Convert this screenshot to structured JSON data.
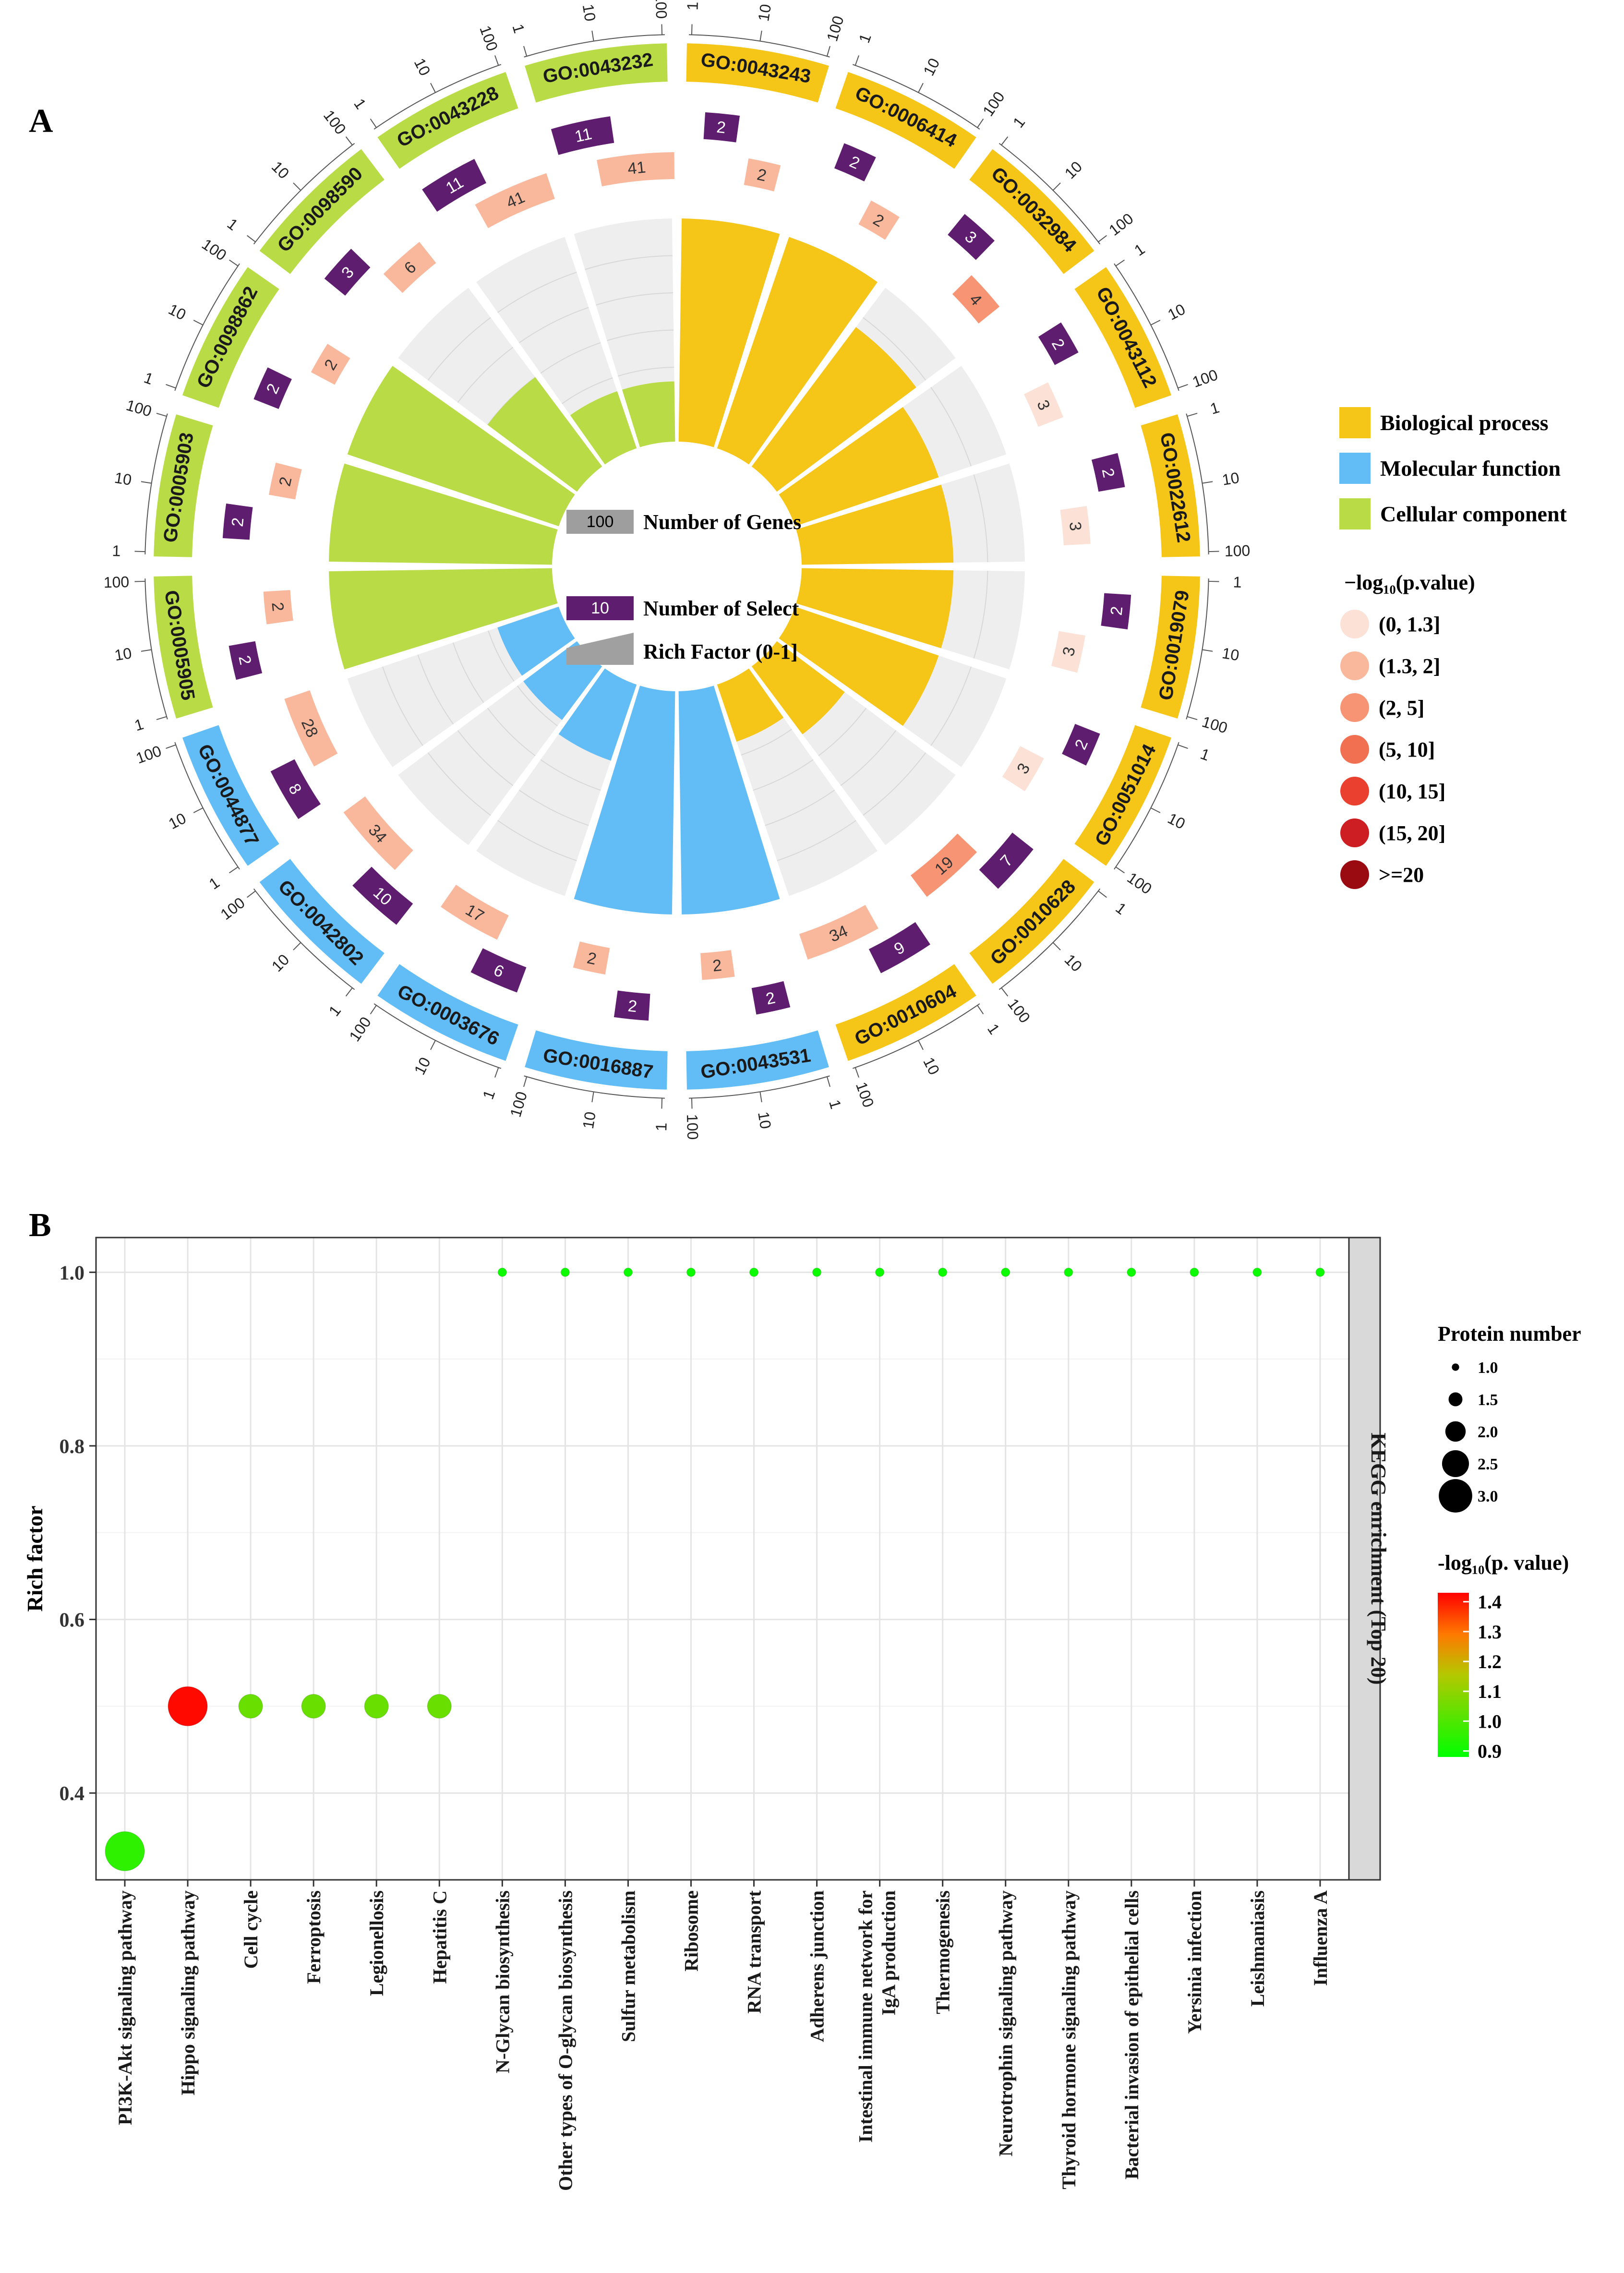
{
  "panel_a": {
    "letter": "A",
    "sector_ticks": [
      "1",
      "10",
      "100"
    ],
    "legend_categories": [
      {
        "label": "Biological process",
        "color": "#F5C518"
      },
      {
        "label": "Molecular function",
        "color": "#62BDF6"
      },
      {
        "label": "Cellular component",
        "color": "#B9DB45"
      }
    ],
    "pvalue_legend": {
      "title": "−log₁₀(p.value)",
      "items": [
        {
          "label": "(0, 1.3]",
          "color": "#FCE1D6"
        },
        {
          "label": "(1.3, 2]",
          "color": "#F9B79C"
        },
        {
          "label": "(2, 5]",
          "color": "#F69474"
        },
        {
          "label": "(5, 10]",
          "color": "#F27052"
        },
        {
          "label": "(10, 15]",
          "color": "#E9402F"
        },
        {
          "label": "(15, 20]",
          "color": "#CC1E23"
        },
        {
          "label": ">=20",
          "color": "#990A11"
        }
      ]
    },
    "center_legend": {
      "genes_label": "Number of Genes",
      "genes_value": "100",
      "select_label": "Number of Select",
      "select_value": "10",
      "rich_label": "Rich Factor (0-1]"
    }
  },
  "chart_data": [
    {
      "type": "circular-bar",
      "title": "GO enrichment",
      "categories": [
        "GO:0043243",
        "GO:0006414",
        "GO:0032984",
        "GO:0043112",
        "GO:0022612",
        "GO:0019079",
        "GO:0051014",
        "GO:0010628",
        "GO:0010604",
        "GO:0043531",
        "GO:0016887",
        "GO:0003676",
        "GO:0042802",
        "GO:0044877",
        "GO:0005905",
        "GO:0005903",
        "GO:0098862",
        "GO:0098590",
        "GO:0043228",
        "GO:0043232"
      ],
      "ontology": [
        "BP",
        "BP",
        "BP",
        "BP",
        "BP",
        "BP",
        "BP",
        "BP",
        "BP",
        "MF",
        "MF",
        "MF",
        "MF",
        "MF",
        "CC",
        "CC",
        "CC",
        "CC",
        "CC",
        "CC"
      ],
      "number_of_genes": [
        2,
        2,
        4,
        3,
        3,
        3,
        3,
        19,
        34,
        2,
        2,
        17,
        34,
        28,
        2,
        2,
        2,
        6,
        41,
        41
      ],
      "gene_color_class": [
        "(1.3, 2]",
        "(1.3, 2]",
        "(2, 5]",
        "(0, 1.3]",
        "(0, 1.3]",
        "(0, 1.3]",
        "(0, 1.3]",
        "(2, 5]",
        "(1.3, 2]",
        "(1.3, 2]",
        "(1.3, 2]",
        "(1.3, 2]",
        "(1.3, 2]",
        "(1.3, 2]",
        "(1.3, 2]",
        "(1.3, 2]",
        "(1.3, 2]",
        "(1.3, 2]",
        "(1.3, 2]",
        "(1.3, 2]"
      ],
      "number_of_select": [
        2,
        2,
        3,
        2,
        2,
        2,
        2,
        7,
        9,
        2,
        2,
        6,
        10,
        8,
        2,
        2,
        2,
        3,
        11,
        11
      ],
      "rich_factor": [
        1.0,
        1.0,
        0.78,
        0.68,
        0.68,
        0.68,
        0.68,
        0.38,
        0.27,
        1.0,
        1.0,
        0.36,
        0.3,
        0.29,
        1.0,
        1.0,
        1.0,
        0.5,
        0.27,
        0.27
      ],
      "ylim": [
        0,
        1
      ]
    },
    {
      "type": "scatter",
      "letter": "B",
      "title": "KEGG enrichment (Top 20)",
      "xlabel": "",
      "ylabel": "Rich factor",
      "categories": [
        "PI3K-Akt signaling pathway",
        "Hippo signaling pathway",
        "Cell cycle",
        "Ferroptosis",
        "Legionellosis",
        "Hepatitis C",
        "N-Glycan biosynthesis",
        "Other types of O-glycan biosynthesis",
        "Sulfur metabolism",
        "Ribosome",
        "RNA transport",
        "Adherens junction",
        "Intestinal immune network for IgA production",
        "Thermogenesis",
        "Neurotrophin signaling pathway",
        "Thyroid hormone signaling pathway",
        "Bacterial invasion of epithelial cells",
        "Yersinia infection",
        "Leishmaniasis",
        "Influenza A"
      ],
      "rich_factor": [
        0.333,
        0.5,
        0.5,
        0.5,
        0.5,
        0.5,
        1.0,
        1.0,
        1.0,
        1.0,
        1.0,
        1.0,
        1.0,
        1.0,
        1.0,
        1.0,
        1.0,
        1.0,
        1.0,
        1.0
      ],
      "protein_number": [
        3,
        3,
        2,
        2,
        2,
        2,
        1,
        1,
        1,
        1,
        1,
        1,
        1,
        1,
        1,
        1,
        1,
        1,
        1,
        1
      ],
      "neg_log10_p": [
        0.95,
        1.42,
        1.04,
        1.04,
        1.04,
        1.04,
        0.9,
        0.9,
        0.9,
        0.9,
        0.9,
        0.9,
        0.9,
        0.9,
        0.9,
        0.9,
        0.9,
        0.9,
        0.9,
        0.9
      ],
      "ylim": [
        0.3,
        1.04
      ],
      "yticks": [
        "0.4",
        "0.6",
        "0.8",
        "1.0"
      ],
      "size_legend": {
        "title": "Protein number",
        "labels": [
          "1.0",
          "1.5",
          "2.0",
          "2.5",
          "3.0"
        ]
      },
      "color_legend": {
        "title": "-log₁₀(p. value)",
        "labels": [
          "1.4",
          "1.3",
          "1.2",
          "1.1",
          "1.0",
          "0.9"
        ],
        "range": [
          0.88,
          1.43
        ]
      }
    }
  ]
}
